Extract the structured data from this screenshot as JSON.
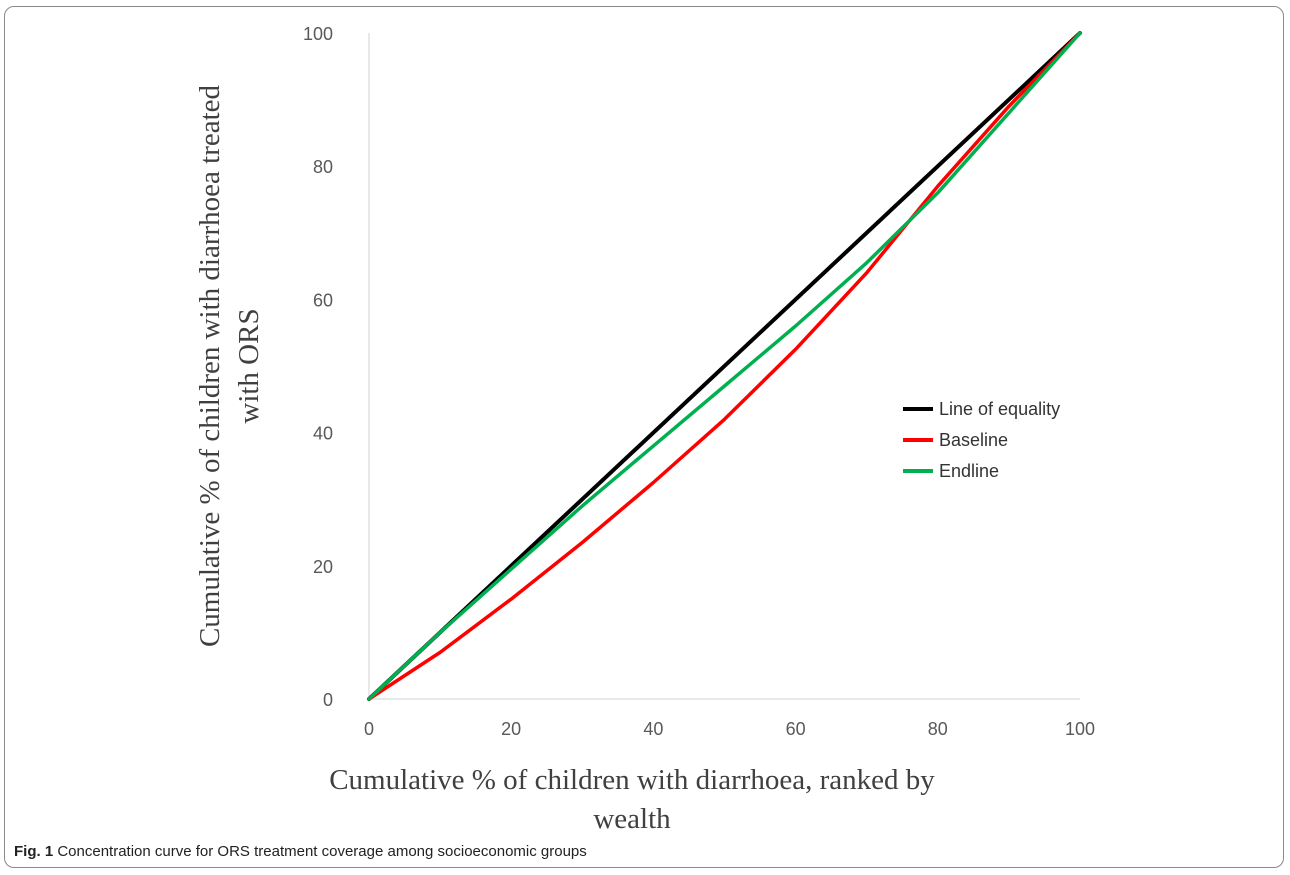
{
  "chart_data": {
    "type": "line",
    "xlabel_lines": [
      "Cumulative % of children with diarrhoea, ranked by",
      "wealth"
    ],
    "ylabel_lines": [
      "Cumulative % of children with diarrhoea treated",
      "with ORS"
    ],
    "xlim": [
      0,
      100
    ],
    "ylim": [
      0,
      100
    ],
    "x_ticks": [
      "0",
      "20",
      "40",
      "60",
      "80",
      "100"
    ],
    "y_ticks": [
      "0",
      "20",
      "40",
      "60",
      "80",
      "100"
    ],
    "grid": false,
    "legend_position": "right",
    "series": [
      {
        "name": "Line of equality",
        "color": "#000000",
        "x": [
          0,
          100
        ],
        "y": [
          0,
          100
        ]
      },
      {
        "name": "Baseline",
        "color": "#ff0000",
        "x": [
          0,
          10,
          20,
          30,
          40,
          50,
          60,
          70,
          80,
          90,
          100
        ],
        "y": [
          0,
          7,
          15,
          23.5,
          32.5,
          42,
          52.5,
          64,
          77,
          89,
          100
        ]
      },
      {
        "name": "Endline",
        "color": "#00b050",
        "x": [
          0,
          10,
          20,
          30,
          40,
          50,
          60,
          70,
          80,
          90,
          100
        ],
        "y": [
          0,
          10,
          19.5,
          29,
          38,
          47,
          56,
          65.5,
          76,
          88,
          100
        ]
      }
    ]
  },
  "caption": {
    "label": "Fig. 1",
    "text": "Concentration curve for ORS treatment coverage among socioeconomic groups"
  }
}
